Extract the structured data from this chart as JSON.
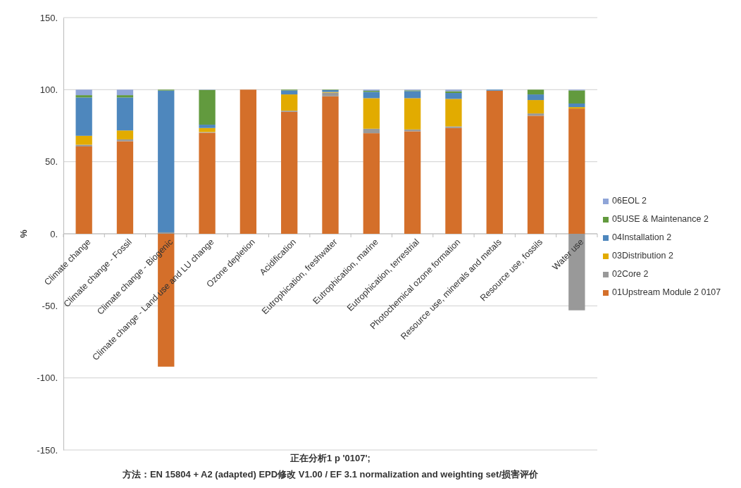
{
  "chart_data": {
    "type": "bar",
    "stacked": true,
    "ylabel": "%",
    "xlabel": "正在分析1 p '0107';",
    "annotations": [
      "方法：EN 15804 + A2 (adapted) EPD修改 V1.00 / EF 3.1 normalization and weighting set/损害评价"
    ],
    "categories": [
      "Climate change",
      "Climate change - Fossil",
      "Climate change - Biogenic",
      "Climate change - Land use and LU change",
      "Ozone depletion",
      "Acidification",
      "Eutrophication, freshwater",
      "Eutrophication, marine",
      "Eutrophication, terrestrial",
      "Photochemical ozone formation",
      "Resource use, minerals and metals",
      "Resource use, fossils",
      "Water use"
    ],
    "series": [
      {
        "name": "01Upstream Module 2 0107",
        "color": "#d46f2a",
        "values": [
          60.6,
          64.2,
          -92.2,
          70.1,
          100,
          84.6,
          95.4,
          69.8,
          71.1,
          73.4,
          99.3,
          81.9,
          86.9
        ]
      },
      {
        "name": "02Core 2",
        "color": "#999999",
        "values": [
          1.2,
          1.3,
          1,
          0.5,
          0,
          0.8,
          2.5,
          3.1,
          1.3,
          1.1,
          0,
          1.6,
          -53.1
        ]
      },
      {
        "name": "03Distribution 2",
        "color": "#e2ab00",
        "values": [
          6.2,
          6.2,
          0,
          2.8,
          0,
          11.3,
          0.5,
          21.2,
          21.7,
          19.1,
          0,
          9.3,
          1
        ]
      },
      {
        "name": "04Installation 2",
        "color": "#4e87bd",
        "values": [
          26.6,
          22.9,
          98.4,
          2.3,
          0,
          2.8,
          1.3,
          4.4,
          4.9,
          4.1,
          0.7,
          3.9,
          2.5
        ]
      },
      {
        "name": "05USE & Maintenance 2",
        "color": "#629a3e",
        "values": [
          1.6,
          1.6,
          0.6,
          24.1,
          0,
          0.5,
          0.3,
          0.7,
          0.5,
          1.2,
          0,
          3.3,
          9.1
        ]
      },
      {
        "name": "06EOL 2",
        "color": "#8fa5d8",
        "values": [
          3.8,
          3.8,
          0,
          0.2,
          0,
          0,
          0,
          0.8,
          0.5,
          1.1,
          0,
          0,
          0.5
        ]
      }
    ],
    "ylim": [
      -150,
      150
    ],
    "yticks": [
      {
        "value": -150,
        "label": "-150."
      },
      {
        "value": -100,
        "label": "-100."
      },
      {
        "value": -50,
        "label": "-50."
      },
      {
        "value": 0,
        "label": "0."
      },
      {
        "value": 50,
        "label": "50."
      },
      {
        "value": 100,
        "label": "100."
      },
      {
        "value": 150,
        "label": "150."
      }
    ],
    "grid": "y",
    "legend": "right"
  }
}
